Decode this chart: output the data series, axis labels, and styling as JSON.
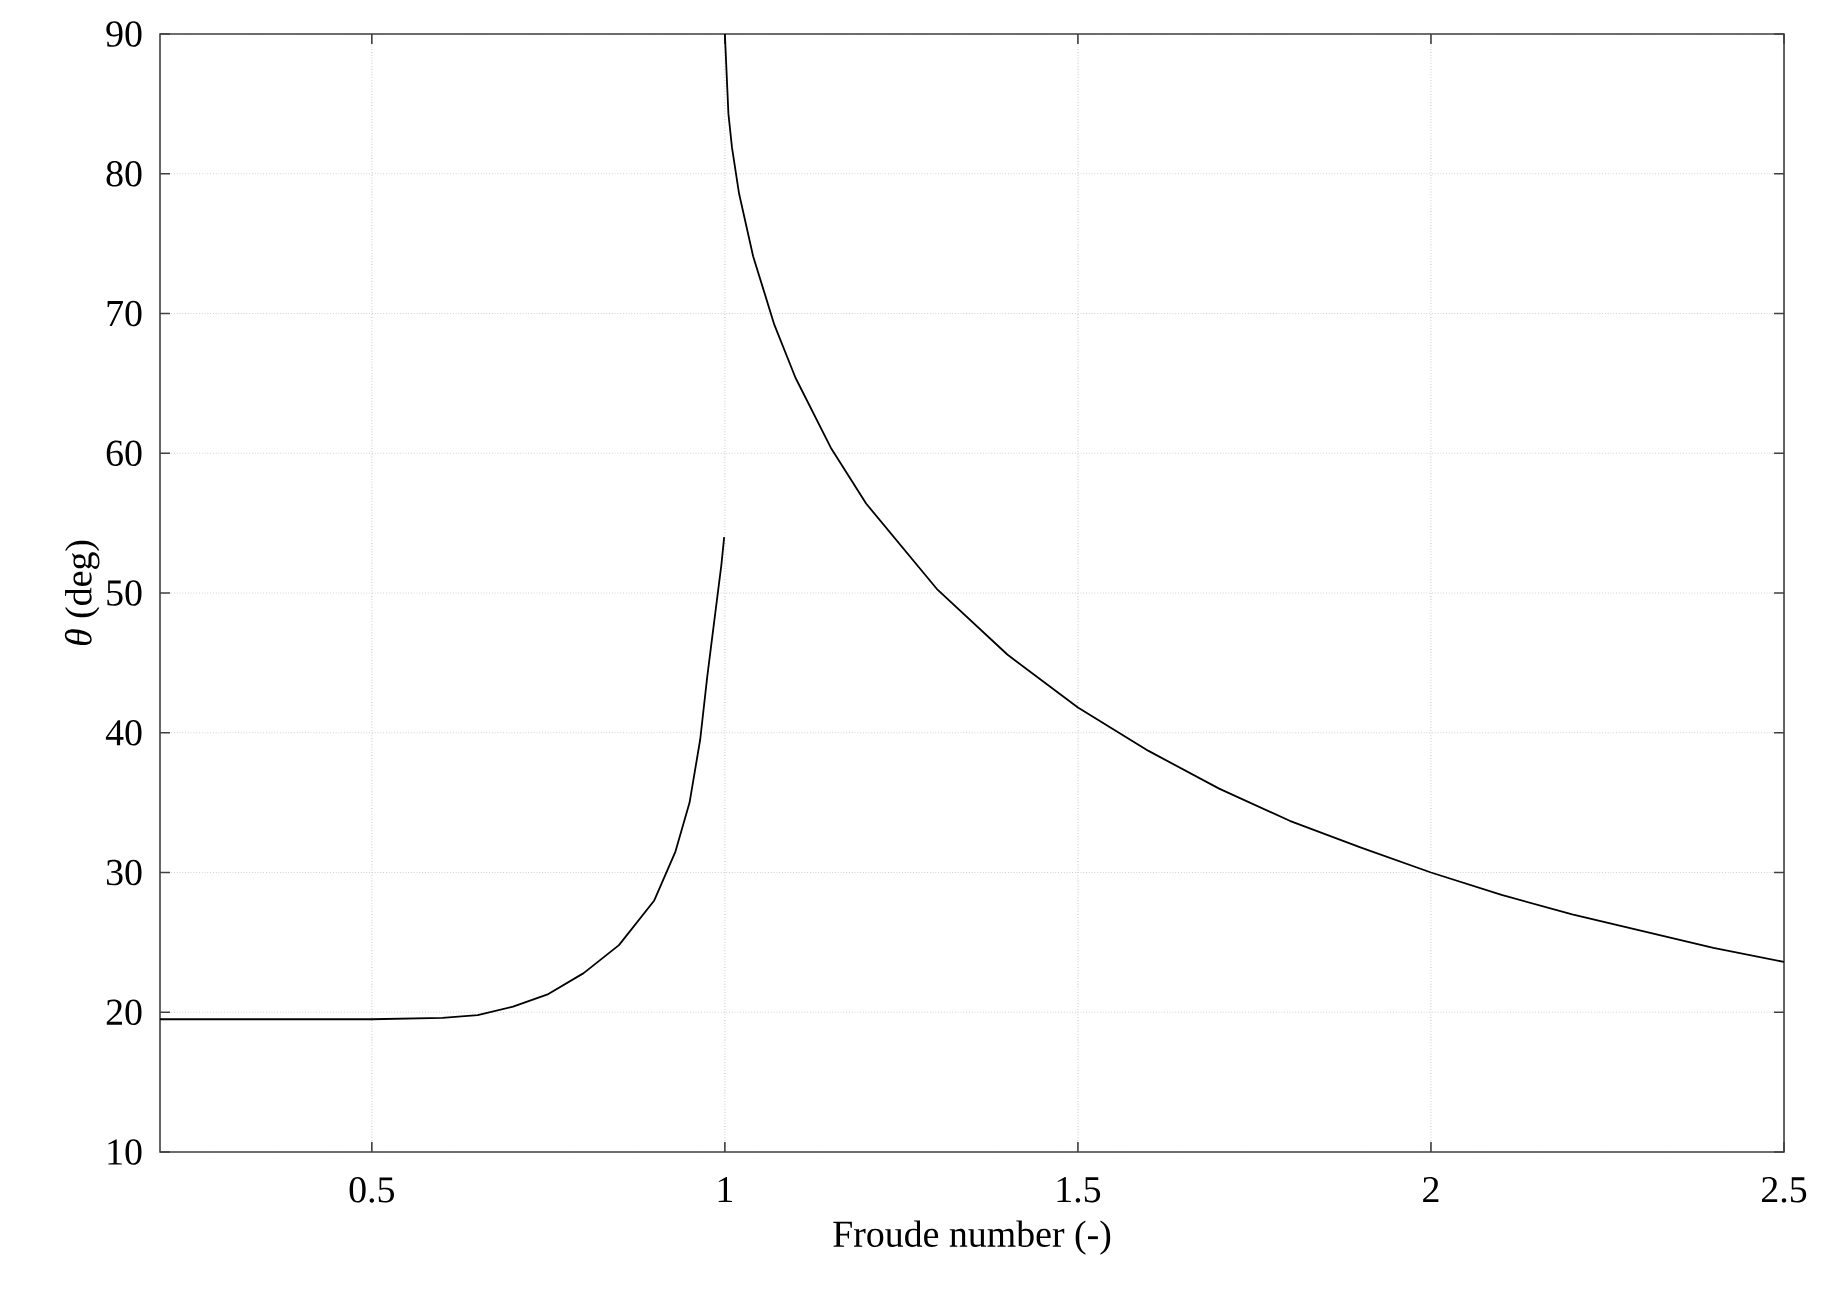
{
  "chart_data": {
    "type": "line",
    "xlabel": "Froude number (-)",
    "ylabel": "*θ* (deg)",
    "xlim": [
      0.2,
      2.5
    ],
    "ylim": [
      10,
      90
    ],
    "xticks": [
      0.5,
      1,
      1.5,
      2,
      2.5
    ],
    "yticks": [
      10,
      20,
      30,
      40,
      50,
      60,
      70,
      80,
      90
    ],
    "grid": true,
    "marker": "none",
    "line_style": "solid",
    "series": [
      {
        "color": "#000000",
        "x": [
          0.2,
          0.5,
          0.6,
          0.65,
          0.7,
          0.75,
          0.8,
          0.85,
          0.9,
          0.93,
          0.95,
          0.965,
          0.975,
          0.985,
          0.995,
          0.999
        ],
        "values": [
          19.5,
          19.5,
          19.6,
          19.8,
          20.4,
          21.3,
          22.8,
          24.8,
          28.0,
          31.5,
          35,
          39.5,
          44,
          48,
          52,
          54
        ]
      },
      {
        "color": "#000000",
        "x": [
          1.0,
          1.005,
          1.01,
          1.02,
          1.04,
          1.07,
          1.1,
          1.15,
          1.2,
          1.3,
          1.4,
          1.5,
          1.6,
          1.7,
          1.8,
          1.9,
          2.0,
          2.1,
          2.2,
          2.3,
          2.4,
          2.5
        ],
        "values": [
          90,
          84.3,
          81.9,
          78.6,
          74.1,
          69.2,
          65.4,
          60.4,
          56.4,
          50.3,
          45.6,
          41.8,
          38.7,
          36.0,
          33.7,
          31.8,
          30.0,
          28.4,
          27.0,
          25.8,
          24.6,
          23.6
        ]
      }
    ]
  }
}
